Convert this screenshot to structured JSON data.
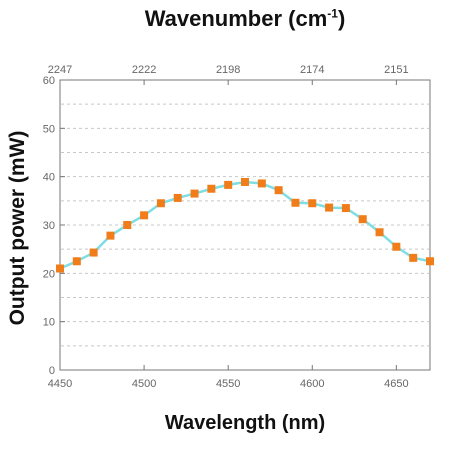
{
  "chart_data": {
    "type": "scatter",
    "title_top": {
      "main": "Wavenumber (cm",
      "sup": "-1",
      "end": ")"
    },
    "xlabel": "Wavelength (nm)",
    "ylabel": "Output power (mW)",
    "xlim": [
      4450,
      4670
    ],
    "ylim": [
      0,
      60
    ],
    "x_ticks": [
      4450,
      4500,
      4550,
      4600,
      4650
    ],
    "y_ticks": [
      0,
      10,
      20,
      30,
      40,
      50,
      60
    ],
    "top_ticks": [
      {
        "label": "2247",
        "at": 4450
      },
      {
        "label": "2222",
        "at": 4500
      },
      {
        "label": "2198",
        "at": 4550
      },
      {
        "label": "2174",
        "at": 4600
      },
      {
        "label": "2151",
        "at": 4650
      }
    ],
    "grid": true,
    "series": [
      {
        "marker_color": "#f07d1a",
        "line_color": "#7fdde4",
        "x": [
          4450,
          4460,
          4470,
          4480,
          4490,
          4500,
          4510,
          4520,
          4530,
          4540,
          4550,
          4560,
          4570,
          4580,
          4590,
          4600,
          4610,
          4620,
          4630,
          4640,
          4650,
          4660,
          4670
        ],
        "y": [
          21.0,
          22.5,
          24.3,
          27.8,
          30.0,
          32.0,
          34.5,
          35.6,
          36.5,
          37.5,
          38.3,
          38.9,
          38.6,
          37.2,
          34.6,
          34.5,
          33.6,
          33.5,
          31.2,
          28.5,
          25.5,
          23.2,
          22.5
        ]
      }
    ]
  }
}
